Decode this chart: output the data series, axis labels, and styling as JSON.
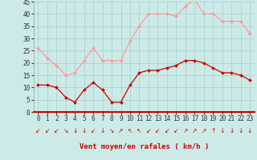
{
  "hours": [
    0,
    1,
    2,
    3,
    4,
    5,
    6,
    7,
    8,
    9,
    10,
    11,
    12,
    13,
    14,
    15,
    16,
    17,
    18,
    19,
    20,
    21,
    22,
    23
  ],
  "wind_avg": [
    11,
    11,
    10,
    6,
    4,
    9,
    12,
    9,
    4,
    4,
    11,
    16,
    17,
    17,
    18,
    19,
    21,
    21,
    20,
    18,
    16,
    16,
    15,
    13
  ],
  "wind_gust": [
    26,
    22,
    19,
    15,
    16,
    21,
    26,
    21,
    21,
    21,
    29,
    35,
    40,
    40,
    40,
    39,
    43,
    46,
    40,
    40,
    37,
    37,
    37,
    32
  ],
  "bg_color": "#cceae8",
  "grid_color": "#aad4d0",
  "avg_color": "#cc0000",
  "gust_color": "#ff9999",
  "xlabel": "Vent moyen/en rafales ( km/h )",
  "xlabel_color": "#cc0000",
  "ylim": [
    0,
    45
  ],
  "yticks": [
    0,
    5,
    10,
    15,
    20,
    25,
    30,
    35,
    40,
    45
  ],
  "tick_fontsize": 5.5,
  "wind_dirs": [
    "↙",
    "↙",
    "↙",
    "↘",
    "↓",
    "↓",
    "↙",
    "↓",
    "↘",
    "↗",
    "↖",
    "↖",
    "↙",
    "↙",
    "↙",
    "↙",
    "↗",
    "↗",
    "↗",
    "↑",
    "↓",
    "↓",
    "↓",
    "↓"
  ]
}
